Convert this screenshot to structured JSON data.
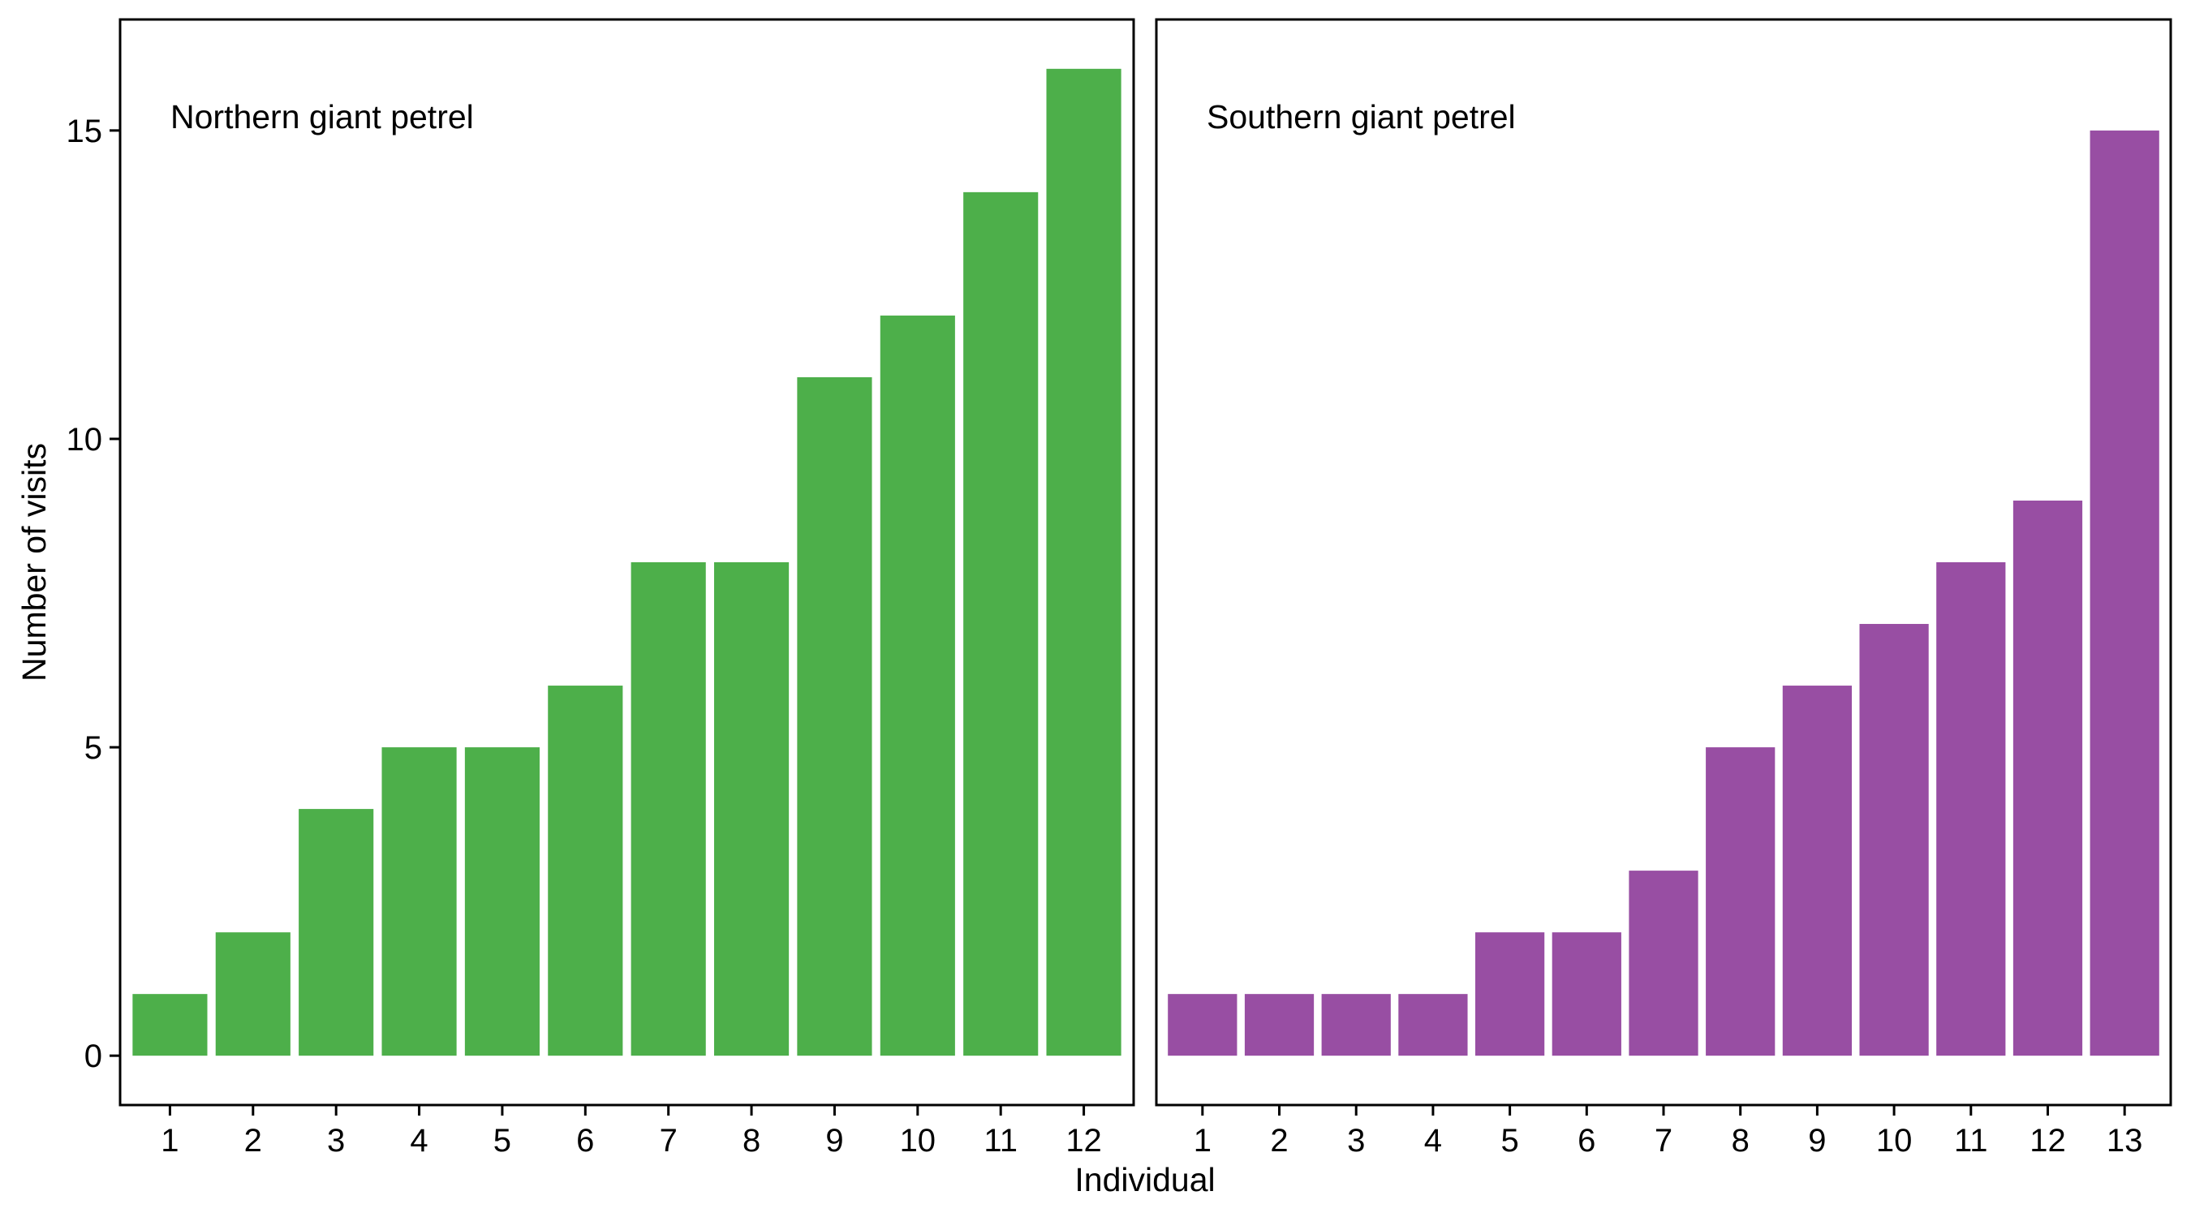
{
  "chart_data": {
    "type": "bar",
    "xlabel": "Individual",
    "ylabel": "Number of visits",
    "ylim": [
      -0.8,
      16.8
    ],
    "yticks": [
      0,
      5,
      10,
      15
    ],
    "grid": false,
    "panels": [
      {
        "label": "Northern giant petrel",
        "color": "#4daf4a",
        "categories": [
          "1",
          "2",
          "3",
          "4",
          "5",
          "6",
          "7",
          "8",
          "9",
          "10",
          "11",
          "12"
        ],
        "values": [
          1,
          2,
          4,
          5,
          5,
          6,
          8,
          8,
          11,
          12,
          14,
          16
        ]
      },
      {
        "label": "Southern giant petrel",
        "color": "#984ea3",
        "categories": [
          "1",
          "2",
          "3",
          "4",
          "5",
          "6",
          "7",
          "8",
          "9",
          "10",
          "11",
          "12",
          "13"
        ],
        "values": [
          1,
          1,
          1,
          1,
          2,
          2,
          3,
          5,
          6,
          7,
          8,
          9,
          15
        ]
      }
    ]
  }
}
